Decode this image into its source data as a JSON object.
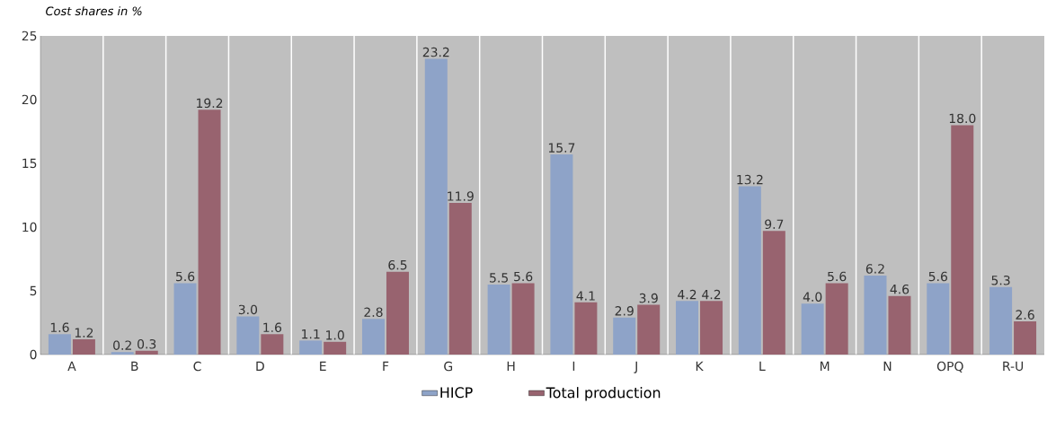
{
  "chart_data": {
    "type": "bar",
    "ylabel": "Cost shares in %",
    "categories": [
      "A",
      "B",
      "C",
      "D",
      "E",
      "F",
      "G",
      "H",
      "I",
      "J",
      "K",
      "L",
      "M",
      "N",
      "OPQ",
      "R-U"
    ],
    "series": [
      {
        "name": "HICP",
        "color": "#8ea3c8",
        "values": [
          1.6,
          0.2,
          5.6,
          3.0,
          1.1,
          2.8,
          23.2,
          5.5,
          15.7,
          2.9,
          4.2,
          13.2,
          4.0,
          6.2,
          5.6,
          5.3
        ],
        "value_labels": [
          "1.6",
          "0.2",
          "5.6",
          "3.0",
          "1.1",
          "2.8",
          "23.2",
          "5.5",
          "15.7",
          "2.9",
          "4.2",
          "13.2",
          "4.0",
          "6.2",
          "5.6",
          "5.3"
        ]
      },
      {
        "name": "Total production",
        "color": "#98636f",
        "values": [
          1.2,
          0.3,
          19.2,
          1.6,
          1.0,
          6.5,
          11.9,
          5.6,
          4.1,
          3.9,
          4.2,
          9.7,
          5.6,
          4.6,
          18.0,
          2.6
        ],
        "value_labels": [
          "1.2",
          "0.3",
          "19.2",
          "1.6",
          "1.0",
          "6.5",
          "11.9",
          "5.6",
          "4.1",
          "3.9",
          "4.2",
          "9.7",
          "5.6",
          "4.6",
          "18.0",
          "2.6"
        ]
      }
    ],
    "ylim": [
      0,
      25
    ],
    "yticks": [
      0,
      5,
      10,
      15,
      20,
      25
    ],
    "grid": "x",
    "legend": "bottom"
  }
}
